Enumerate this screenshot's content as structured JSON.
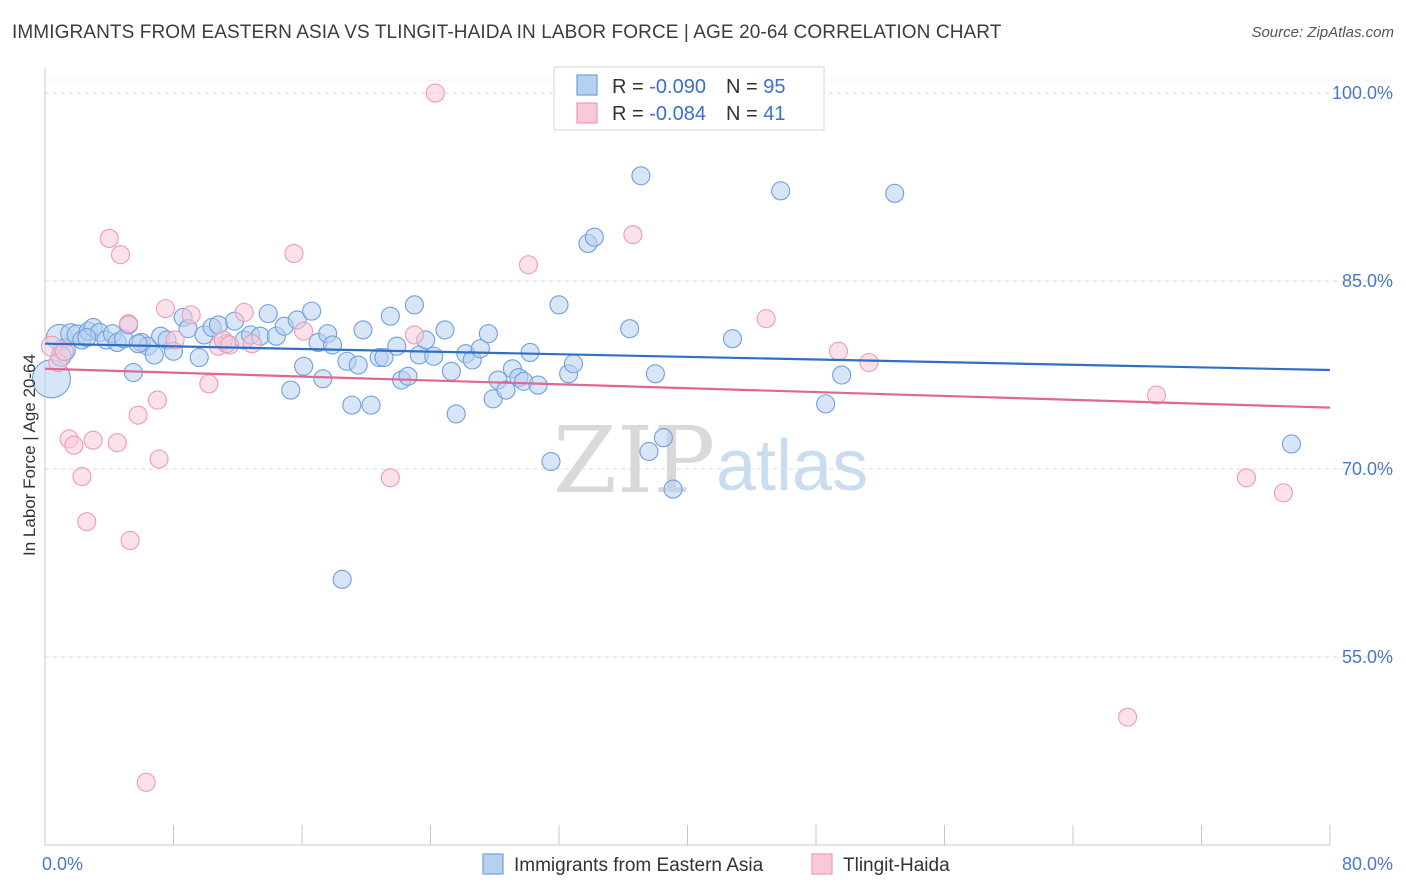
{
  "title": "IMMIGRANTS FROM EASTERN ASIA VS TLINGIT-HAIDA IN LABOR FORCE | AGE 20-64 CORRELATION CHART",
  "source": "Source: ZipAtlas.com",
  "watermark": {
    "part1": "ZIP",
    "part2": "atlas"
  },
  "chart_data": {
    "type": "scatter",
    "ylabel": "In Labor Force | Age 20-64",
    "xlim": [
      0,
      80
    ],
    "ylim": [
      40,
      102
    ],
    "x_tick_labels": [
      "0.0%",
      "80.0%"
    ],
    "y_ticks": [
      55,
      70,
      85,
      100
    ],
    "y_tick_labels": [
      "55.0%",
      "70.0%",
      "85.0%",
      "100.0%"
    ],
    "grid": "horizontal-dashed",
    "legend_top": [
      {
        "r_label": "R = ",
        "r_value": "-0.090",
        "n_label": "N = ",
        "n_value": "95",
        "color": "#6ea0e0"
      },
      {
        "r_label": "R = ",
        "r_value": "-0.084",
        "n_label": "N = ",
        "n_value": "41",
        "color": "#f09ab5"
      }
    ],
    "series": [
      {
        "name": "Immigrants from Eastern Asia",
        "color": "#6ea0e0",
        "fill": "#b8d0f0",
        "trend": {
          "x": [
            0,
            80
          ],
          "y": [
            80.0,
            77.9
          ],
          "color": "#2f6fc8"
        },
        "points": [
          [
            0.4,
            77.2,
            18
          ],
          [
            0.9,
            80.5,
            12
          ],
          [
            1.2,
            79.5,
            10
          ],
          [
            1.6,
            80.8,
            9
          ],
          [
            2.0,
            80.7,
            9
          ],
          [
            2.3,
            80.3,
            8
          ],
          [
            2.7,
            81.0,
            8
          ],
          [
            3.0,
            81.3,
            8
          ],
          [
            3.4,
            80.9,
            8
          ],
          [
            3.8,
            80.3,
            8
          ],
          [
            4.2,
            80.8,
            8
          ],
          [
            4.5,
            80.1,
            8
          ],
          [
            4.9,
            80.4,
            8
          ],
          [
            5.2,
            81.5,
            8
          ],
          [
            5.5,
            77.7,
            8
          ],
          [
            6.0,
            80.1,
            8
          ],
          [
            6.4,
            79.8,
            8
          ],
          [
            6.8,
            79.1,
            8
          ],
          [
            7.2,
            80.6,
            8
          ],
          [
            7.6,
            80.3,
            8
          ],
          [
            8.0,
            79.4,
            8
          ],
          [
            8.6,
            82.1,
            8
          ],
          [
            8.9,
            81.2,
            8
          ],
          [
            9.6,
            78.9,
            8
          ],
          [
            9.9,
            80.7,
            8
          ],
          [
            10.4,
            81.3,
            8
          ],
          [
            10.8,
            81.5,
            8
          ],
          [
            11.3,
            80.0,
            8
          ],
          [
            11.8,
            81.8,
            8
          ],
          [
            12.4,
            80.3,
            8
          ],
          [
            12.8,
            80.7,
            8
          ],
          [
            13.4,
            80.6,
            8
          ],
          [
            13.9,
            82.4,
            8
          ],
          [
            14.4,
            80.6,
            8
          ],
          [
            14.9,
            81.4,
            8
          ],
          [
            15.3,
            76.3,
            8
          ],
          [
            15.7,
            81.9,
            8
          ],
          [
            16.1,
            78.2,
            8
          ],
          [
            16.6,
            82.6,
            8
          ],
          [
            17.0,
            80.1,
            8
          ],
          [
            17.3,
            77.2,
            8
          ],
          [
            17.6,
            80.8,
            8
          ],
          [
            17.9,
            79.9,
            8
          ],
          [
            18.5,
            61.2,
            8
          ],
          [
            18.8,
            78.6,
            8
          ],
          [
            19.1,
            75.1,
            8
          ],
          [
            19.5,
            78.3,
            8
          ],
          [
            19.8,
            81.1,
            8
          ],
          [
            20.3,
            75.1,
            8
          ],
          [
            20.8,
            78.9,
            8
          ],
          [
            21.1,
            78.9,
            8
          ],
          [
            21.5,
            82.2,
            8
          ],
          [
            21.9,
            79.8,
            8
          ],
          [
            22.2,
            77.1,
            8
          ],
          [
            22.6,
            77.4,
            8
          ],
          [
            23.0,
            83.1,
            8
          ],
          [
            23.3,
            79.1,
            8
          ],
          [
            23.7,
            80.3,
            8
          ],
          [
            24.2,
            79.0,
            8
          ],
          [
            24.9,
            81.1,
            8
          ],
          [
            25.3,
            77.8,
            8
          ],
          [
            25.6,
            74.4,
            8
          ],
          [
            26.2,
            79.2,
            8
          ],
          [
            26.6,
            78.7,
            8
          ],
          [
            27.1,
            79.6,
            8
          ],
          [
            27.6,
            80.8,
            8
          ],
          [
            27.9,
            75.6,
            8
          ],
          [
            28.2,
            77.1,
            8
          ],
          [
            28.7,
            76.3,
            8
          ],
          [
            29.1,
            78.0,
            8
          ],
          [
            29.5,
            77.3,
            8
          ],
          [
            29.8,
            77.0,
            8
          ],
          [
            30.2,
            79.3,
            8
          ],
          [
            30.7,
            76.7,
            8
          ],
          [
            31.5,
            70.6,
            8
          ],
          [
            32.0,
            83.1,
            8
          ],
          [
            32.6,
            77.6,
            8
          ],
          [
            32.9,
            78.4,
            8
          ],
          [
            33.8,
            88.0,
            8
          ],
          [
            34.2,
            88.5,
            8
          ],
          [
            36.4,
            81.2,
            8
          ],
          [
            37.1,
            93.4,
            8
          ],
          [
            37.6,
            71.4,
            8
          ],
          [
            38.5,
            72.5,
            8
          ],
          [
            39.1,
            68.4,
            8
          ],
          [
            38.0,
            77.6,
            8
          ],
          [
            42.8,
            80.4,
            8
          ],
          [
            45.8,
            92.2,
            8
          ],
          [
            48.6,
            75.2,
            8
          ],
          [
            49.6,
            77.5,
            8
          ],
          [
            52.9,
            92.0,
            8
          ],
          [
            77.6,
            72.0,
            8
          ],
          [
            1.0,
            79.0,
            9
          ],
          [
            2.6,
            80.5,
            8
          ],
          [
            5.8,
            80.0,
            8
          ]
        ]
      },
      {
        "name": "Tlingit-Haida",
        "color": "#f09ab5",
        "fill": "#f8cad8",
        "trend": {
          "x": [
            0,
            80
          ],
          "y": [
            78.0,
            74.9
          ],
          "color": "#e06890"
        },
        "points": [
          [
            0.4,
            79.8,
            9
          ],
          [
            0.8,
            78.5,
            8
          ],
          [
            1.2,
            79.4,
            8
          ],
          [
            1.5,
            72.4,
            8
          ],
          [
            1.8,
            71.9,
            8
          ],
          [
            2.3,
            69.4,
            8
          ],
          [
            2.6,
            65.8,
            8
          ],
          [
            3.0,
            72.3,
            8
          ],
          [
            4.0,
            88.4,
            8
          ],
          [
            4.5,
            72.1,
            8
          ],
          [
            4.7,
            87.1,
            8
          ],
          [
            5.2,
            81.6,
            8
          ],
          [
            5.3,
            64.3,
            8
          ],
          [
            5.8,
            74.3,
            8
          ],
          [
            6.3,
            45.0,
            8
          ],
          [
            7.0,
            75.5,
            8
          ],
          [
            7.1,
            70.8,
            8
          ],
          [
            7.5,
            82.8,
            8
          ],
          [
            8.1,
            80.3,
            8
          ],
          [
            9.1,
            82.3,
            8
          ],
          [
            10.2,
            76.8,
            8
          ],
          [
            10.8,
            79.8,
            8
          ],
          [
            11.1,
            80.3,
            8
          ],
          [
            11.5,
            79.9,
            8
          ],
          [
            12.4,
            82.5,
            8
          ],
          [
            12.9,
            80.0,
            8
          ],
          [
            15.5,
            87.2,
            8
          ],
          [
            16.1,
            81.0,
            8
          ],
          [
            21.5,
            69.3,
            8
          ],
          [
            23.0,
            80.7,
            8
          ],
          [
            24.3,
            100.0,
            8
          ],
          [
            30.1,
            86.3,
            8
          ],
          [
            35.4,
            100.0,
            8
          ],
          [
            36.6,
            88.7,
            8
          ],
          [
            44.9,
            82.0,
            8
          ],
          [
            49.4,
            79.4,
            8
          ],
          [
            51.3,
            78.5,
            8
          ],
          [
            67.4,
            50.2,
            8
          ],
          [
            69.2,
            75.9,
            8
          ],
          [
            74.8,
            69.3,
            8
          ],
          [
            77.1,
            68.1,
            8
          ]
        ]
      }
    ]
  }
}
